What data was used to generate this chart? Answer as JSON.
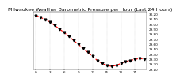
{
  "title": "Milwaukee Weather Barometric Pressure per Hour (Last 24 Hours)",
  "hours": [
    0,
    1,
    2,
    3,
    4,
    5,
    6,
    7,
    8,
    9,
    10,
    11,
    12,
    13,
    14,
    15,
    16,
    17,
    18,
    19,
    20,
    21,
    22,
    23
  ],
  "pressure": [
    30.18,
    30.14,
    30.1,
    30.05,
    29.98,
    29.91,
    29.84,
    29.76,
    29.68,
    29.6,
    29.52,
    29.44,
    29.36,
    29.28,
    29.22,
    29.18,
    29.16,
    29.18,
    29.22,
    29.26,
    29.28,
    29.3,
    29.32,
    29.3
  ],
  "line_color": "#ff0000",
  "marker_color": "#000000",
  "ylim_min": 29.1,
  "ylim_max": 30.25,
  "ytick_step": 0.1,
  "bg_color": "#ffffff",
  "grid_color": "#aaaaaa",
  "title_fontsize": 4.5,
  "tick_fontsize": 3.0,
  "line_width": 0.8,
  "marker_size": 2.0,
  "xtick_positions": [
    0,
    3,
    6,
    9,
    12,
    15,
    18,
    21
  ],
  "xtick_labels": [
    "0",
    "3",
    "6",
    "9",
    "12",
    "15",
    "18",
    "21"
  ],
  "vgrid_positions": [
    0,
    3,
    6,
    9,
    12,
    15,
    18,
    21,
    24
  ]
}
